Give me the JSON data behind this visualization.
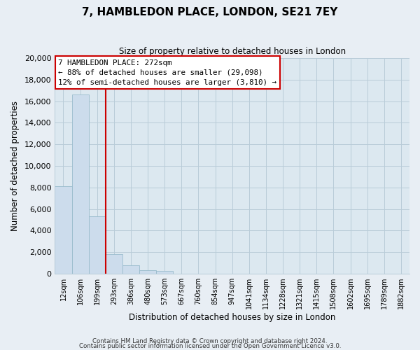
{
  "title": "7, HAMBLEDON PLACE, LONDON, SE21 7EY",
  "subtitle": "Size of property relative to detached houses in London",
  "xlabel": "Distribution of detached houses by size in London",
  "ylabel": "Number of detached properties",
  "bar_labels": [
    "12sqm",
    "106sqm",
    "199sqm",
    "293sqm",
    "386sqm",
    "480sqm",
    "573sqm",
    "667sqm",
    "760sqm",
    "854sqm",
    "947sqm",
    "1041sqm",
    "1134sqm",
    "1228sqm",
    "1321sqm",
    "1415sqm",
    "1508sqm",
    "1602sqm",
    "1695sqm",
    "1789sqm",
    "1882sqm"
  ],
  "bar_values": [
    8100,
    16600,
    5300,
    1850,
    780,
    300,
    250,
    0,
    0,
    0,
    0,
    0,
    0,
    0,
    0,
    0,
    0,
    0,
    0,
    0,
    0
  ],
  "bar_color": "#ccdcec",
  "bar_edge_color": "#99bbcc",
  "vline_color": "#cc0000",
  "ylim": [
    0,
    20000
  ],
  "yticks": [
    0,
    2000,
    4000,
    6000,
    8000,
    10000,
    12000,
    14000,
    16000,
    18000,
    20000
  ],
  "annotation_line1": "7 HAMBLEDON PLACE: 272sqm",
  "annotation_line2": "← 88% of detached houses are smaller (29,098)",
  "annotation_line3": "12% of semi-detached houses are larger (3,810) →",
  "annotation_box_color": "#ffffff",
  "annotation_box_edge_color": "#cc0000",
  "footer_line1": "Contains HM Land Registry data © Crown copyright and database right 2024.",
  "footer_line2": "Contains public sector information licensed under the Open Government Licence v3.0.",
  "background_color": "#e8eef4",
  "plot_bg_color": "#dce8f0",
  "grid_color": "#b8ccd8",
  "vline_x_index": 2.5
}
